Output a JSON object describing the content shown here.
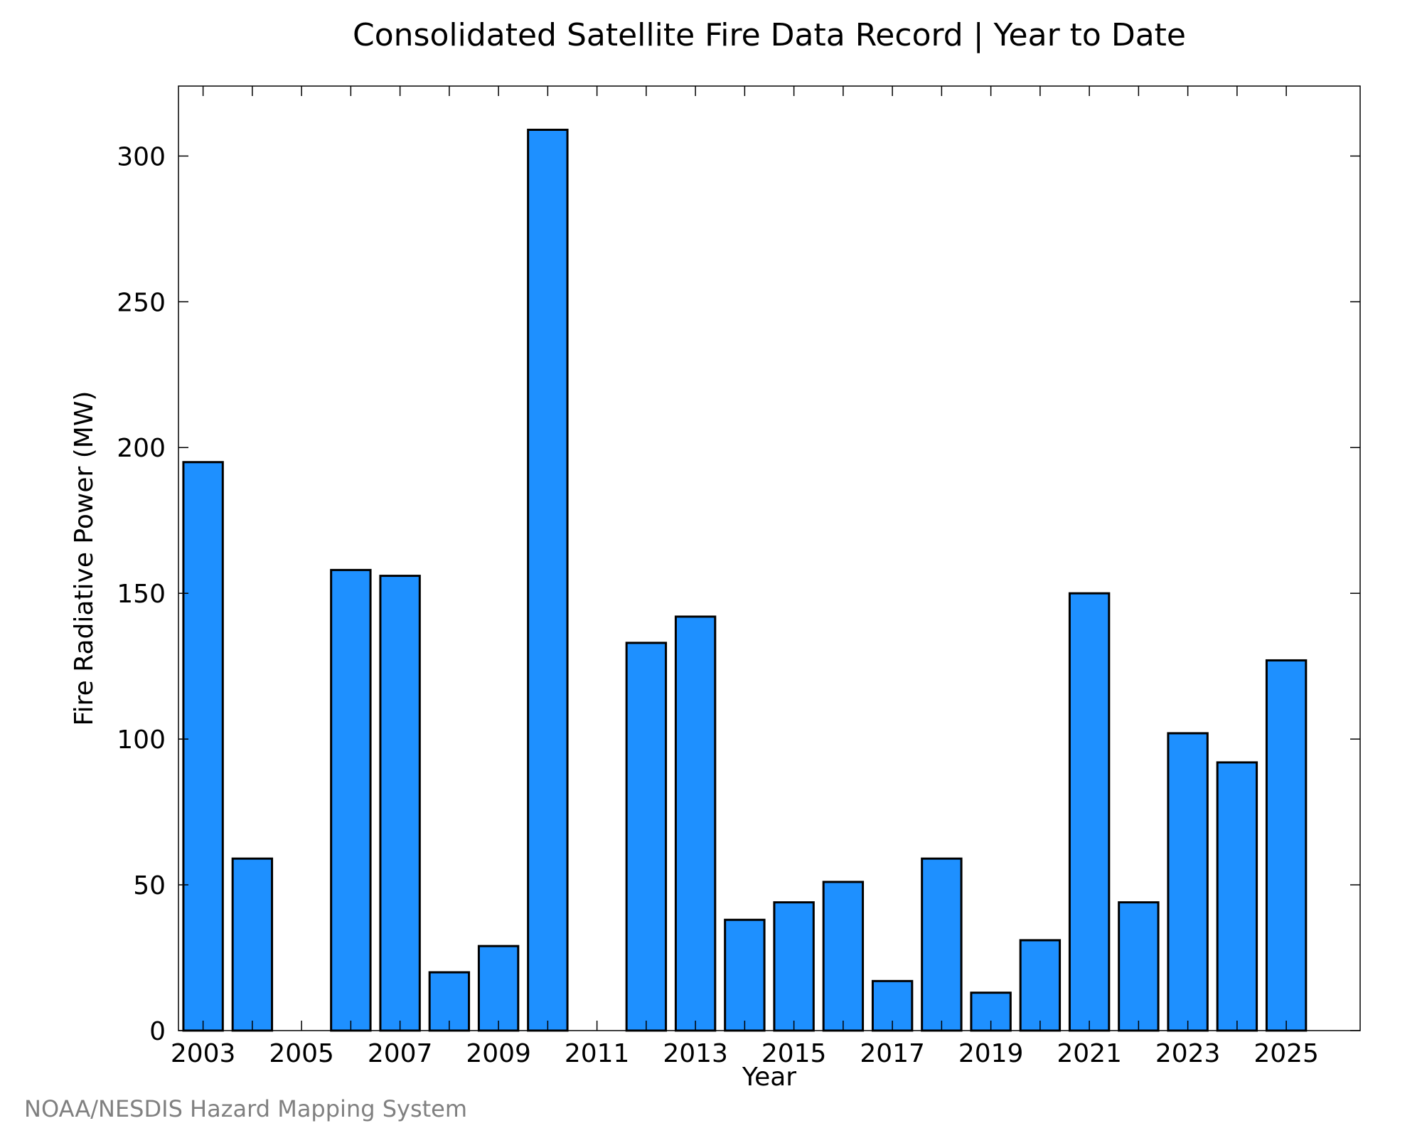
{
  "chart_data": {
    "type": "bar",
    "title": "Consolidated Satellite Fire Data Record | Year to Date",
    "xlabel": "Year",
    "ylabel": "Fire Radiative Power (MW)",
    "categories": [
      2003,
      2004,
      2005,
      2006,
      2007,
      2008,
      2009,
      2010,
      2011,
      2012,
      2013,
      2014,
      2015,
      2016,
      2017,
      2018,
      2019,
      2020,
      2021,
      2022,
      2023,
      2024,
      2025
    ],
    "values": [
      195,
      59,
      0,
      158,
      156,
      20,
      29,
      309,
      0,
      133,
      142,
      38,
      44,
      51,
      17,
      59,
      13,
      31,
      150,
      44,
      102,
      92,
      127
    ],
    "x_tick_labels": [
      "2003",
      "2005",
      "2007",
      "2009",
      "2011",
      "2013",
      "2015",
      "2017",
      "2019",
      "2021",
      "2023",
      "2025"
    ],
    "y_tick_labels": [
      "0",
      "50",
      "100",
      "150",
      "200",
      "250",
      "300"
    ],
    "xlim": [
      2002.5,
      2026.5
    ],
    "ylim": [
      0,
      324
    ],
    "bar_color": "#1e90ff",
    "grid": false,
    "legend": "none"
  },
  "credit": "NOAA/NESDIS Hazard Mapping System"
}
